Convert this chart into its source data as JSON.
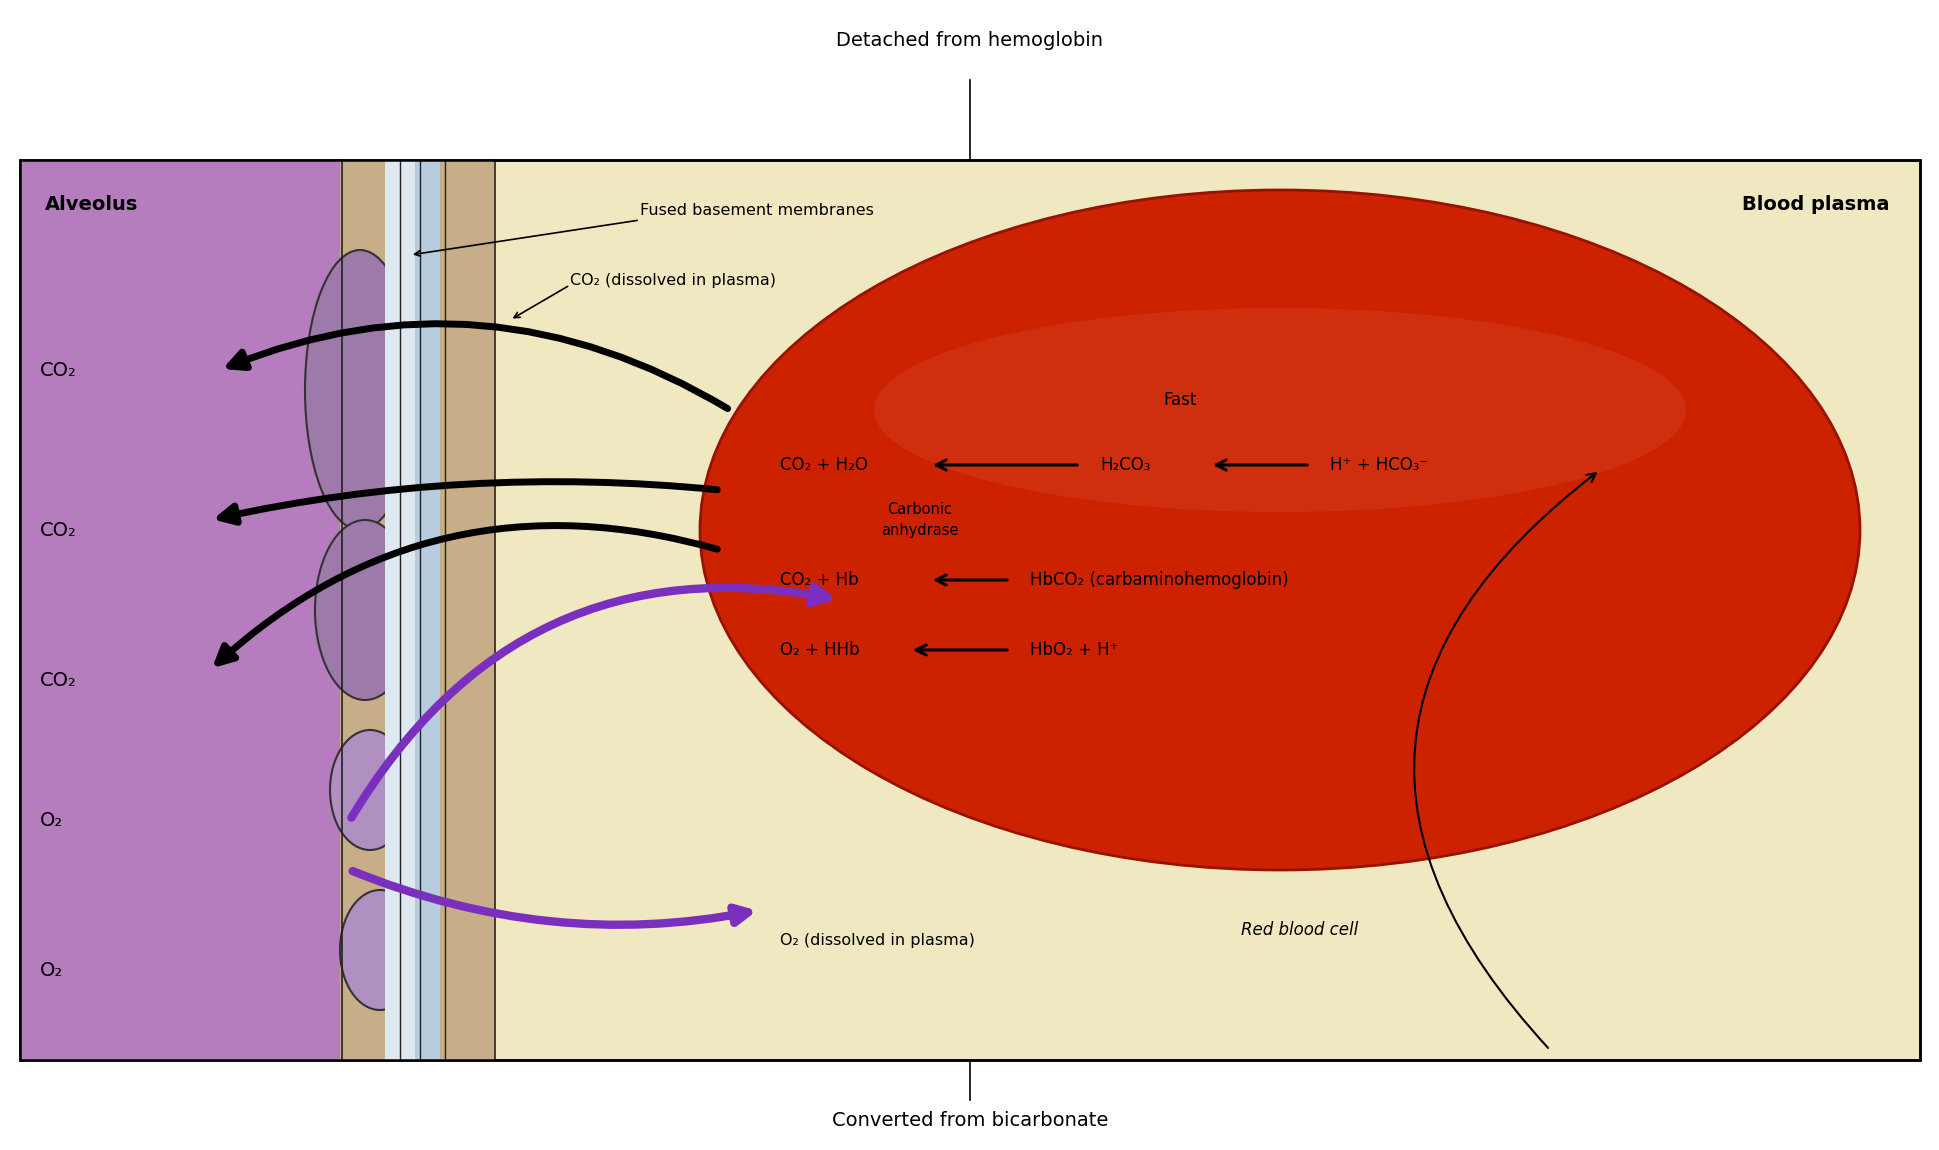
{
  "fig_width": 19.4,
  "fig_height": 11.5,
  "bg_color": "#f0e8c0",
  "alveolus_color": "#b57cbe",
  "blood_plasma_label": "Blood plasma",
  "rbc_color_outer": "#cc2200",
  "rbc_color_inner": "#b81e00",
  "rbc_label": "Red blood cell",
  "border_color": "#000000",
  "title_above": "Detached from hemoglobin",
  "title_below": "Converted from bicarbonate",
  "fused_membrane_label": "Fused basement membranes",
  "co2_plasma_label": "CO₂ (dissolved in plasma)",
  "o2_plasma_label": "O₂ (dissolved in plasma)",
  "fast_label": "Fast",
  "carbonic_anhydrase_label": "Carbonic\nanhydrase",
  "reaction1_left": "CO₂ + H₂O",
  "reaction1_mid": "H₂CO₃",
  "reaction1_right": "H⁺ + HCO₃⁻",
  "reaction2_left": "CO₂ + Hb",
  "reaction2_right": "HbCO₂ (carbaminohemoglobin)",
  "reaction3_left": "O₂ + HHb",
  "reaction3_right": "HbO₂ + H⁺",
  "co2_labels": [
    "CO₂",
    "CO₂",
    "CO₂"
  ],
  "o2_labels": [
    "O₂",
    "O₂"
  ],
  "alveolus_label": "Alveolus",
  "arrow_color_black": "#000000",
  "arrow_color_purple": "#7b2fbe"
}
